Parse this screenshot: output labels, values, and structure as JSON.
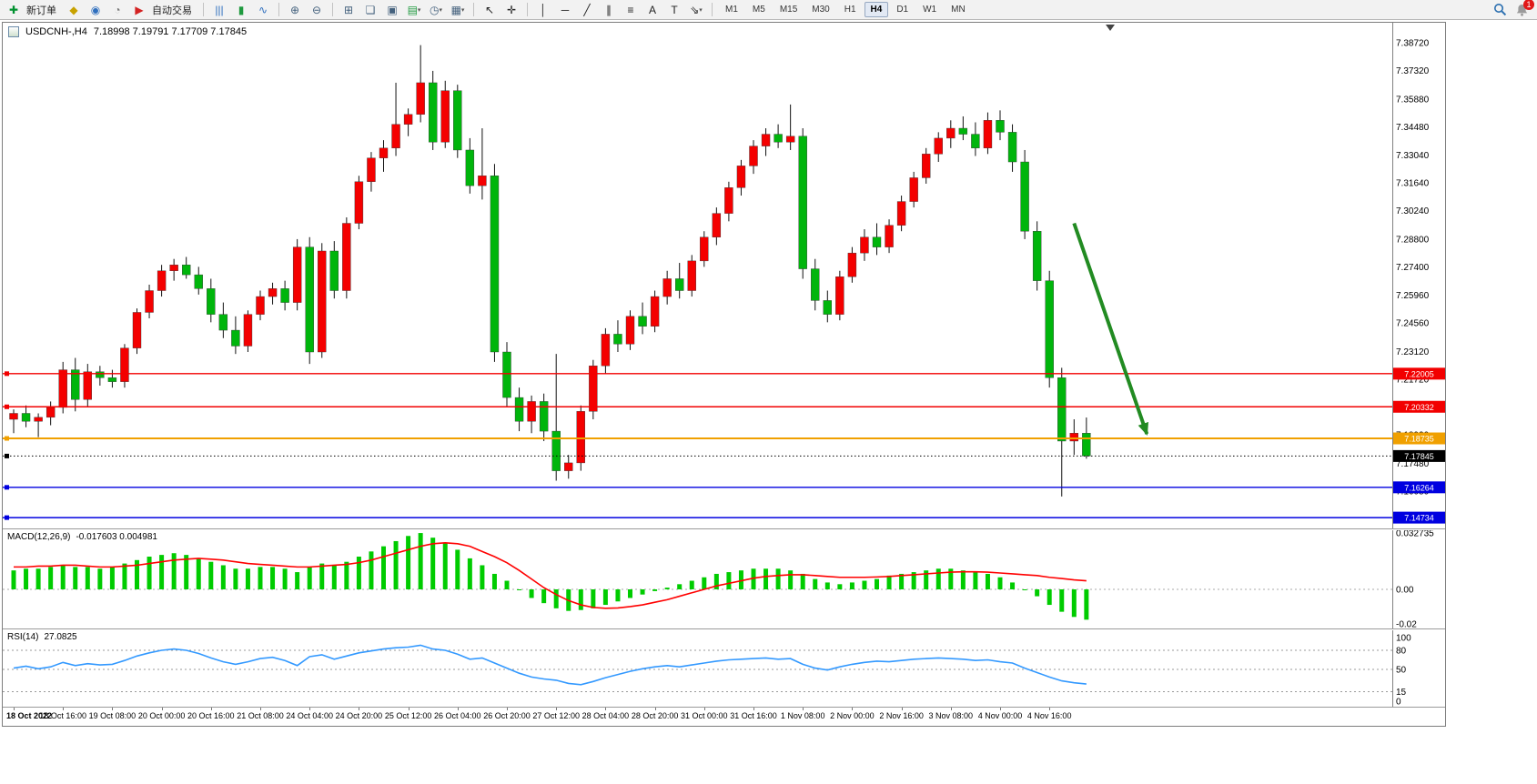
{
  "toolbar": {
    "new_order": "新订单",
    "auto_trading": "自动交易",
    "badge": "1",
    "timeframes": [
      "M1",
      "M5",
      "M15",
      "M30",
      "H1",
      "H4",
      "D1",
      "W1",
      "MN"
    ],
    "active_timeframe": "H4",
    "items": [
      {
        "name": "new-order-button",
        "glyph": "✚",
        "color": "#00912f",
        "label": "新订单"
      },
      {
        "name": "expert-advisors-icon",
        "glyph": "◆",
        "color": "#c8a200"
      },
      {
        "name": "market-watch-icon",
        "glyph": "◉",
        "color": "#2f6fbe"
      },
      {
        "name": "support-icon",
        "glyph": "◔",
        "color": "#777777"
      },
      {
        "name": "auto-trading-button",
        "glyph": "▶",
        "color": "#d42222",
        "label": "自动交易"
      },
      {
        "sep": true
      },
      {
        "name": "bar-chart-type-icon",
        "glyph": "|||",
        "color": "#2f6fbe"
      },
      {
        "name": "candlestick-chart-type-icon",
        "glyph": "▮",
        "color": "#1f9a3f"
      },
      {
        "name": "line-chart-type-icon",
        "glyph": "∿",
        "color": "#2f6fbe"
      },
      {
        "sep": true
      },
      {
        "name": "zoom-in-icon",
        "glyph": "⊕",
        "color": "#44617d"
      },
      {
        "name": "zoom-out-icon",
        "glyph": "⊖",
        "color": "#44617d"
      },
      {
        "sep": true
      },
      {
        "name": "tile-windows-icon",
        "glyph": "⊞",
        "color": "#44617d"
      },
      {
        "name": "cascade-windows-icon",
        "glyph": "❏",
        "color": "#44617d"
      },
      {
        "name": "arrange-windows-icon",
        "glyph": "▣",
        "color": "#44617d"
      },
      {
        "name": "new-chart-button",
        "glyph": "▤",
        "color": "#1f9a3f",
        "caret": true
      },
      {
        "name": "period-button",
        "glyph": "◷",
        "color": "#44617d",
        "caret": true
      },
      {
        "name": "template-button",
        "glyph": "▦",
        "color": "#44617d",
        "caret": true
      },
      {
        "sep": true
      },
      {
        "name": "cursor-tool-icon",
        "glyph": "↖",
        "color": "#222222"
      },
      {
        "name": "crosshair-tool-icon",
        "glyph": "✛",
        "color": "#222222"
      },
      {
        "sep": true
      },
      {
        "name": "vertical-line-tool-icon",
        "glyph": "│",
        "color": "#222222"
      },
      {
        "name": "horizontal-line-tool-icon",
        "glyph": "─",
        "color": "#222222"
      },
      {
        "name": "trendline-tool-icon",
        "glyph": "╱",
        "color": "#222222"
      },
      {
        "name": "channel-tool-icon",
        "glyph": "∥",
        "color": "#222222"
      },
      {
        "name": "fibonacci-tool-icon",
        "glyph": "≡",
        "color": "#222222"
      },
      {
        "name": "text-tool-icon",
        "glyph": "A",
        "color": "#222222"
      },
      {
        "name": "label-tool-icon",
        "glyph": "T",
        "color": "#222222"
      },
      {
        "name": "arrows-tool-button",
        "glyph": "⇘",
        "color": "#222222",
        "caret": true
      },
      {
        "sep": true
      }
    ]
  },
  "chart": {
    "title": "USDCNH-,H4",
    "ohlc": "7.18998 7.19791 7.17709 7.17845"
  },
  "chart_data": [
    {
      "type": "candlestick",
      "symbol": "USDCNH-",
      "timeframe": "H4",
      "up_color": "#f40000",
      "down_color": "#00b50c",
      "ylim": [
        7.1428,
        7.3973
      ],
      "y_ticks": [
        "7.38720",
        "7.37320",
        "7.35880",
        "7.34480",
        "7.33040",
        "7.31640",
        "7.30240",
        "7.28800",
        "7.27400",
        "7.25960",
        "7.24560",
        "7.23120",
        "7.21720",
        "7.20320",
        "7.18920",
        "7.17480",
        "7.16080",
        "7.14680"
      ],
      "candles": [
        [
          7.197,
          7.202,
          7.19,
          7.2
        ],
        [
          7.2,
          7.204,
          7.193,
          7.196
        ],
        [
          7.196,
          7.2,
          7.188,
          7.198
        ],
        [
          7.198,
          7.206,
          7.194,
          7.203
        ],
        [
          7.203,
          7.226,
          7.2,
          7.222
        ],
        [
          7.222,
          7.228,
          7.201,
          7.207
        ],
        [
          7.207,
          7.225,
          7.203,
          7.221
        ],
        [
          7.221,
          7.224,
          7.214,
          7.218
        ],
        [
          7.218,
          7.222,
          7.213,
          7.216
        ],
        [
          7.216,
          7.235,
          7.213,
          7.233
        ],
        [
          7.233,
          7.253,
          7.23,
          7.251
        ],
        [
          7.251,
          7.265,
          7.248,
          7.262
        ],
        [
          7.262,
          7.275,
          7.259,
          7.272
        ],
        [
          7.272,
          7.278,
          7.267,
          7.275
        ],
        [
          7.275,
          7.279,
          7.268,
          7.27
        ],
        [
          7.27,
          7.274,
          7.26,
          7.263
        ],
        [
          7.263,
          7.268,
          7.246,
          7.25
        ],
        [
          7.25,
          7.256,
          7.238,
          7.242
        ],
        [
          7.242,
          7.249,
          7.23,
          7.234
        ],
        [
          7.234,
          7.252,
          7.231,
          7.25
        ],
        [
          7.25,
          7.262,
          7.247,
          7.259
        ],
        [
          7.259,
          7.266,
          7.255,
          7.263
        ],
        [
          7.263,
          7.267,
          7.252,
          7.256
        ],
        [
          7.256,
          7.288,
          7.252,
          7.284
        ],
        [
          7.284,
          7.289,
          7.225,
          7.231
        ],
        [
          7.231,
          7.286,
          7.228,
          7.282
        ],
        [
          7.282,
          7.287,
          7.258,
          7.262
        ],
        [
          7.262,
          7.299,
          7.258,
          7.296
        ],
        [
          7.296,
          7.32,
          7.293,
          7.317
        ],
        [
          7.317,
          7.332,
          7.312,
          7.329
        ],
        [
          7.329,
          7.338,
          7.322,
          7.334
        ],
        [
          7.334,
          7.367,
          7.33,
          7.346
        ],
        [
          7.346,
          7.354,
          7.34,
          7.351
        ],
        [
          7.351,
          7.386,
          7.347,
          7.367
        ],
        [
          7.367,
          7.373,
          7.333,
          7.337
        ],
        [
          7.337,
          7.368,
          7.334,
          7.363
        ],
        [
          7.363,
          7.366,
          7.329,
          7.333
        ],
        [
          7.333,
          7.339,
          7.311,
          7.315
        ],
        [
          7.315,
          7.344,
          7.308,
          7.32
        ],
        [
          7.32,
          7.326,
          7.226,
          7.231
        ],
        [
          7.231,
          7.236,
          7.203,
          7.208
        ],
        [
          7.208,
          7.213,
          7.191,
          7.196
        ],
        [
          7.196,
          7.209,
          7.19,
          7.206
        ],
        [
          7.206,
          7.21,
          7.186,
          7.191
        ],
        [
          7.191,
          7.23,
          7.166,
          7.171
        ],
        [
          7.171,
          7.179,
          7.167,
          7.175
        ],
        [
          7.175,
          7.204,
          7.171,
          7.201
        ],
        [
          7.201,
          7.227,
          7.197,
          7.224
        ],
        [
          7.224,
          7.243,
          7.22,
          7.24
        ],
        [
          7.24,
          7.247,
          7.231,
          7.235
        ],
        [
          7.235,
          7.252,
          7.232,
          7.249
        ],
        [
          7.249,
          7.256,
          7.24,
          7.244
        ],
        [
          7.244,
          7.262,
          7.241,
          7.259
        ],
        [
          7.259,
          7.272,
          7.255,
          7.268
        ],
        [
          7.268,
          7.276,
          7.258,
          7.262
        ],
        [
          7.262,
          7.28,
          7.259,
          7.277
        ],
        [
          7.277,
          7.292,
          7.274,
          7.289
        ],
        [
          7.289,
          7.304,
          7.285,
          7.301
        ],
        [
          7.301,
          7.317,
          7.297,
          7.314
        ],
        [
          7.314,
          7.328,
          7.31,
          7.325
        ],
        [
          7.325,
          7.338,
          7.321,
          7.335
        ],
        [
          7.335,
          7.344,
          7.33,
          7.341
        ],
        [
          7.341,
          7.346,
          7.334,
          7.337
        ],
        [
          7.337,
          7.356,
          7.333,
          7.34
        ],
        [
          7.34,
          7.344,
          7.268,
          7.273
        ],
        [
          7.273,
          7.278,
          7.252,
          7.257
        ],
        [
          7.257,
          7.262,
          7.246,
          7.25
        ],
        [
          7.25,
          7.272,
          7.247,
          7.269
        ],
        [
          7.269,
          7.284,
          7.266,
          7.281
        ],
        [
          7.281,
          7.293,
          7.277,
          7.289
        ],
        [
          7.289,
          7.296,
          7.28,
          7.284
        ],
        [
          7.284,
          7.298,
          7.281,
          7.295
        ],
        [
          7.295,
          7.31,
          7.292,
          7.307
        ],
        [
          7.307,
          7.322,
          7.304,
          7.319
        ],
        [
          7.319,
          7.334,
          7.316,
          7.331
        ],
        [
          7.331,
          7.342,
          7.327,
          7.339
        ],
        [
          7.339,
          7.348,
          7.334,
          7.344
        ],
        [
          7.344,
          7.35,
          7.338,
          7.341
        ],
        [
          7.341,
          7.347,
          7.33,
          7.334
        ],
        [
          7.334,
          7.352,
          7.331,
          7.348
        ],
        [
          7.348,
          7.353,
          7.338,
          7.342
        ],
        [
          7.342,
          7.346,
          7.322,
          7.327
        ],
        [
          7.327,
          7.333,
          7.288,
          7.292
        ],
        [
          7.292,
          7.297,
          7.262,
          7.267
        ],
        [
          7.267,
          7.272,
          7.213,
          7.218
        ],
        [
          7.218,
          7.223,
          7.158,
          7.186
        ],
        [
          7.186,
          7.197,
          7.179,
          7.19
        ],
        [
          7.18998,
          7.19791,
          7.17709,
          7.17845
        ]
      ],
      "levels": [
        {
          "label": "7.22005",
          "value": 7.22005,
          "color": "#f20000",
          "style": "solid",
          "width": 1.4
        },
        {
          "label": "7.20332",
          "value": 7.20332,
          "color": "#f20000",
          "style": "solid",
          "width": 1.4
        },
        {
          "label": "7.18735",
          "value": 7.18735,
          "color": "#f0a000",
          "style": "solid",
          "width": 2
        },
        {
          "label": "7.17845",
          "value": 7.17845,
          "color": "#000000",
          "style": "dotted",
          "width": 1
        },
        {
          "label": "7.16264",
          "value": 7.16264,
          "color": "#0000e0",
          "style": "solid",
          "width": 1.4
        },
        {
          "label": "7.14734",
          "value": 7.14734,
          "color": "#0000e0",
          "style": "solid",
          "width": 1.4
        }
      ],
      "annotation_arrow": {
        "from": [
          86,
          7.296
        ],
        "to": [
          91.9,
          7.1896
        ],
        "color": "#228B22"
      }
    },
    {
      "type": "bar",
      "name": "MACD(12,26,9)",
      "values_text": "-0.017603 0.004981",
      "bar_color": "#00cc00",
      "signal_color": "#ff0000",
      "y_ticks": [
        "0.032735",
        "0.00",
        "-0.02"
      ],
      "values": [
        0.011,
        0.012,
        0.012,
        0.013,
        0.014,
        0.013,
        0.013,
        0.012,
        0.013,
        0.015,
        0.017,
        0.019,
        0.02,
        0.021,
        0.02,
        0.018,
        0.016,
        0.014,
        0.012,
        0.012,
        0.013,
        0.013,
        0.012,
        0.01,
        0.013,
        0.015,
        0.014,
        0.016,
        0.019,
        0.022,
        0.025,
        0.028,
        0.031,
        0.0327,
        0.03,
        0.027,
        0.023,
        0.018,
        0.014,
        0.009,
        0.005,
        0.0,
        -0.005,
        -0.008,
        -0.011,
        -0.0125,
        -0.012,
        -0.011,
        -0.009,
        -0.007,
        -0.005,
        -0.003,
        -0.001,
        0.001,
        0.003,
        0.005,
        0.007,
        0.009,
        0.01,
        0.011,
        0.012,
        0.012,
        0.012,
        0.011,
        0.009,
        0.006,
        0.004,
        0.003,
        0.004,
        0.005,
        0.006,
        0.008,
        0.009,
        0.01,
        0.011,
        0.012,
        0.012,
        0.011,
        0.01,
        0.009,
        0.007,
        0.004,
        0.0,
        -0.004,
        -0.009,
        -0.013,
        -0.016,
        -0.0176
      ],
      "signal": [
        0.013,
        0.013,
        0.0135,
        0.0135,
        0.014,
        0.014,
        0.0135,
        0.013,
        0.013,
        0.0135,
        0.014,
        0.015,
        0.016,
        0.017,
        0.0175,
        0.018,
        0.0175,
        0.017,
        0.016,
        0.015,
        0.0145,
        0.014,
        0.0135,
        0.013,
        0.013,
        0.0135,
        0.014,
        0.0145,
        0.0155,
        0.017,
        0.019,
        0.021,
        0.023,
        0.025,
        0.0265,
        0.027,
        0.0265,
        0.025,
        0.022,
        0.019,
        0.0155,
        0.011,
        0.006,
        0.001,
        -0.003,
        -0.0065,
        -0.009,
        -0.0105,
        -0.011,
        -0.0108,
        -0.01,
        -0.009,
        -0.0075,
        -0.006,
        -0.004,
        -0.002,
        0.0,
        0.002,
        0.0035,
        0.005,
        0.0065,
        0.0075,
        0.008,
        0.0085,
        0.0085,
        0.008,
        0.0075,
        0.007,
        0.007,
        0.007,
        0.0072,
        0.0075,
        0.008,
        0.0085,
        0.009,
        0.0095,
        0.01,
        0.0102,
        0.0102,
        0.01,
        0.0095,
        0.009,
        0.0085,
        0.008,
        0.007,
        0.0063,
        0.0055,
        0.004981
      ]
    },
    {
      "type": "line",
      "name": "RSI(14)",
      "value_text": "27.0825",
      "line_color": "#3399ff",
      "ylim": [
        0,
        100
      ],
      "levels": [
        80,
        50,
        15
      ],
      "y_ticks": [
        "100",
        "80",
        "50",
        "15",
        "0"
      ],
      "values": [
        52,
        55,
        51,
        54,
        61,
        56,
        59,
        57,
        58,
        64,
        71,
        76,
        80,
        82,
        80,
        75,
        68,
        62,
        58,
        62,
        67,
        69,
        64,
        56,
        70,
        73,
        66,
        71,
        76,
        79,
        82,
        84,
        85,
        88,
        82,
        80,
        74,
        66,
        68,
        60,
        52,
        44,
        38,
        35,
        33,
        28,
        26,
        31,
        37,
        42,
        47,
        51,
        54,
        56,
        54,
        57,
        60,
        63,
        65,
        66,
        67,
        68,
        66,
        67,
        58,
        52,
        49,
        54,
        58,
        61,
        63,
        62,
        64,
        66,
        67,
        68,
        67,
        66,
        64,
        65,
        62,
        60,
        52,
        45,
        38,
        32,
        29,
        27.08
      ]
    }
  ],
  "time_axis": {
    "per_candles": 4,
    "labels": [
      "18 Oct 2022",
      "18 Oct 16:00",
      "19 Oct 08:00",
      "20 Oct 00:00",
      "20 Oct 16:00",
      "21 Oct 08:00",
      "24 Oct 04:00",
      "24 Oct 20:00",
      "25 Oct 12:00",
      "26 Oct 04:00",
      "26 Oct 20:00",
      "27 Oct 12:00",
      "28 Oct 04:00",
      "28 Oct 20:00",
      "31 Oct 00:00",
      "31 Oct 16:00",
      "1 Nov 08:00",
      "2 Nov 00:00",
      "2 Nov 16:00",
      "3 Nov 08:00",
      "4 Nov 00:00",
      "4 Nov 16:00"
    ]
  }
}
